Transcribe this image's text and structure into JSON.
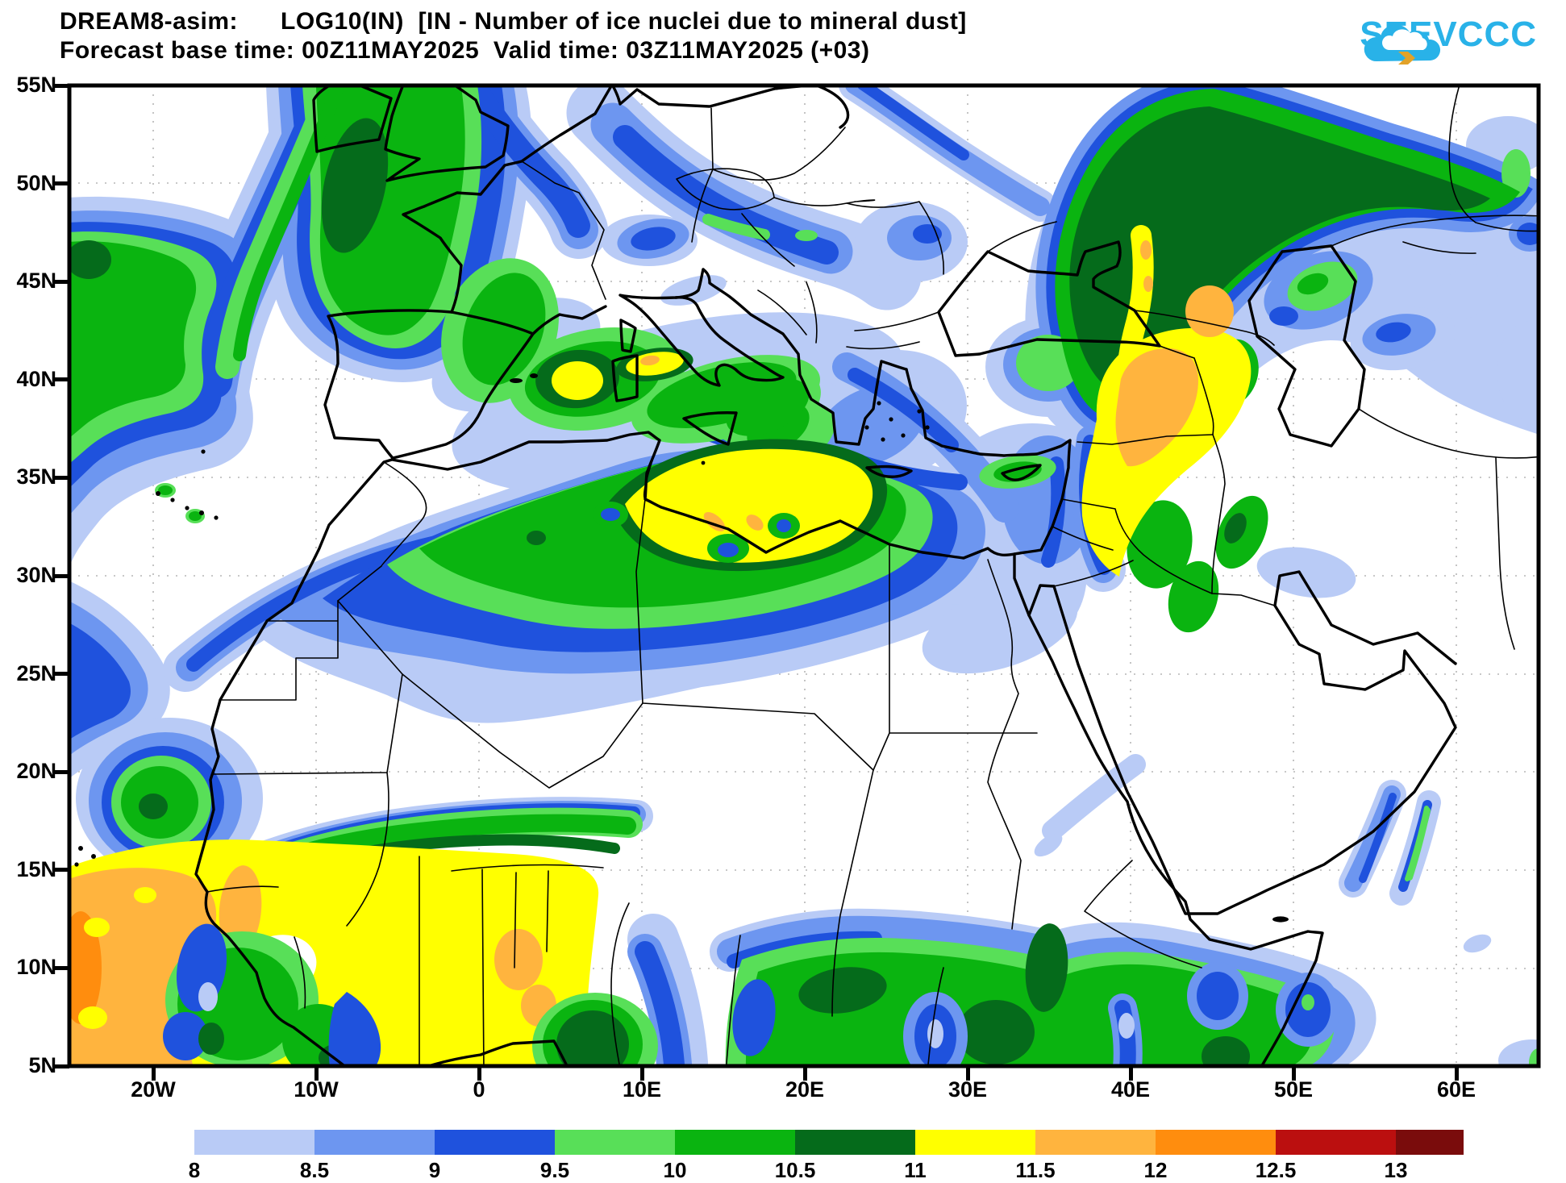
{
  "header": {
    "title_line1": "DREAM8-asim:      LOG10(IN)  [IN - Number of ice nuclei due to mineral dust]",
    "title_line2": "Forecast base time: 00Z11MAY2025  Valid time: 03Z11MAY2025 (+03)",
    "logo_text": "SEEVCCC",
    "logo_color": "#29b2e8",
    "logo_arrow_color": "#e2a229"
  },
  "map": {
    "lat_ticks": [
      "55N",
      "50N",
      "45N",
      "40N",
      "35N",
      "30N",
      "25N",
      "20N",
      "15N",
      "10N",
      "5N"
    ],
    "lon_ticks": [
      "20W",
      "10W",
      "0",
      "10E",
      "20E",
      "30E",
      "40E",
      "50E",
      "60E"
    ]
  },
  "colorbar": {
    "labels": [
      "8",
      "8.5",
      "9",
      "9.5",
      "10",
      "10.5",
      "11",
      "11.5",
      "12",
      "12.5",
      "13"
    ],
    "colors": [
      "#b9cbf6",
      "#6d96f0",
      "#1f52dd",
      "#58df58",
      "#0ab410",
      "#056b1b",
      "#ffff00",
      "#ffb43e",
      "#ff8d0e",
      "#bb0f0f",
      "#7a0c0c"
    ],
    "quantity": "LOG10(IN)"
  }
}
